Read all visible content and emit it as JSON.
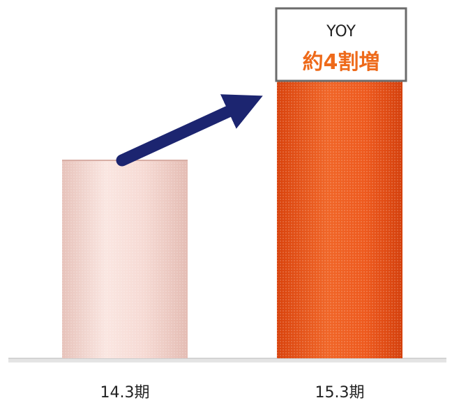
{
  "chart_data": {
    "type": "bar",
    "categories": [
      "14.3期",
      "15.3期"
    ],
    "values": [
      100,
      140
    ],
    "ylim": [
      0,
      150
    ],
    "title": "",
    "xlabel": "",
    "ylabel": "",
    "grid": false,
    "bar_colors": [
      "#f6d8d2",
      "#ee5a1e"
    ],
    "arrow_color": "#1c2570",
    "callout": {
      "line1": "YOY",
      "line2": "約4割増",
      "accent_color": "#ee6a1a",
      "border_color": "#6b6b6b"
    }
  }
}
